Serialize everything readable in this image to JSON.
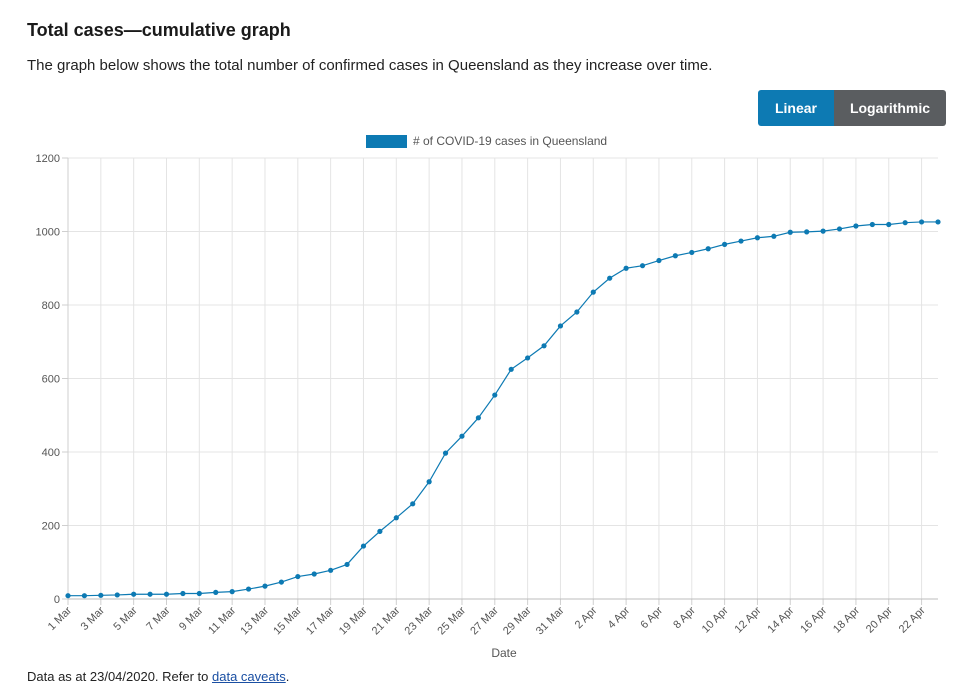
{
  "header": {
    "title": "Total cases—cumulative graph",
    "subtitle": "The graph below shows the total number of confirmed cases in Queensland as they increase over time."
  },
  "toggle": {
    "linear_label": "Linear",
    "log_label": "Logarithmic",
    "active": "Linear",
    "active_color": "#0d7ab3",
    "inactive_color": "#5a5d60"
  },
  "footer": {
    "prefix": "Data as at 23/04/2020. Refer to ",
    "link": "data caveats",
    "suffix": "."
  },
  "chart_data": {
    "type": "line",
    "title": "",
    "xlabel": "Date",
    "ylabel": "",
    "ylim": [
      0,
      1200
    ],
    "yticks": [
      0,
      200,
      400,
      600,
      800,
      1000,
      1200
    ],
    "grid": true,
    "legend_position": "top-center",
    "series_color": "#0d7ab3",
    "x": [
      "1 Mar",
      "2 Mar",
      "3 Mar",
      "4 Mar",
      "5 Mar",
      "6 Mar",
      "7 Mar",
      "8 Mar",
      "9 Mar",
      "10 Mar",
      "11 Mar",
      "12 Mar",
      "13 Mar",
      "14 Mar",
      "15 Mar",
      "16 Mar",
      "17 Mar",
      "18 Mar",
      "19 Mar",
      "20 Mar",
      "21 Mar",
      "22 Mar",
      "23 Mar",
      "24 Mar",
      "25 Mar",
      "26 Mar",
      "27 Mar",
      "28 Mar",
      "29 Mar",
      "30 Mar",
      "31 Mar",
      "1 Apr",
      "2 Apr",
      "3 Apr",
      "4 Apr",
      "5 Apr",
      "6 Apr",
      "7 Apr",
      "8 Apr",
      "9 Apr",
      "10 Apr",
      "11 Apr",
      "12 Apr",
      "13 Apr",
      "14 Apr",
      "15 Apr",
      "16 Apr",
      "17 Apr",
      "18 Apr",
      "19 Apr",
      "20 Apr",
      "21 Apr",
      "22 Apr",
      "23 Apr"
    ],
    "tick_labels": [
      "1 Mar",
      "3 Mar",
      "5 Mar",
      "7 Mar",
      "9 Mar",
      "11 Mar",
      "13 Mar",
      "15 Mar",
      "17 Mar",
      "19 Mar",
      "21 Mar",
      "23 Mar",
      "25 Mar",
      "27 Mar",
      "29 Mar",
      "31 Mar",
      "2 Apr",
      "4 Apr",
      "6 Apr",
      "8 Apr",
      "10 Apr",
      "12 Apr",
      "14 Apr",
      "16 Apr",
      "18 Apr",
      "20 Apr",
      "22 Apr"
    ],
    "series": [
      {
        "name": "# of COVID-19 cases in Queensland",
        "values": [
          9,
          9,
          10,
          11,
          13,
          13,
          13,
          15,
          15,
          18,
          20,
          27,
          35,
          46,
          61,
          68,
          78,
          94,
          144,
          184,
          221,
          259,
          319,
          397,
          443,
          493,
          555,
          625,
          656,
          689,
          743,
          781,
          835,
          873,
          900,
          907,
          921,
          934,
          943,
          953,
          965,
          974,
          983,
          987,
          998,
          999,
          1001,
          1007,
          1015,
          1019,
          1019,
          1024,
          1026,
          1026
        ]
      }
    ]
  }
}
